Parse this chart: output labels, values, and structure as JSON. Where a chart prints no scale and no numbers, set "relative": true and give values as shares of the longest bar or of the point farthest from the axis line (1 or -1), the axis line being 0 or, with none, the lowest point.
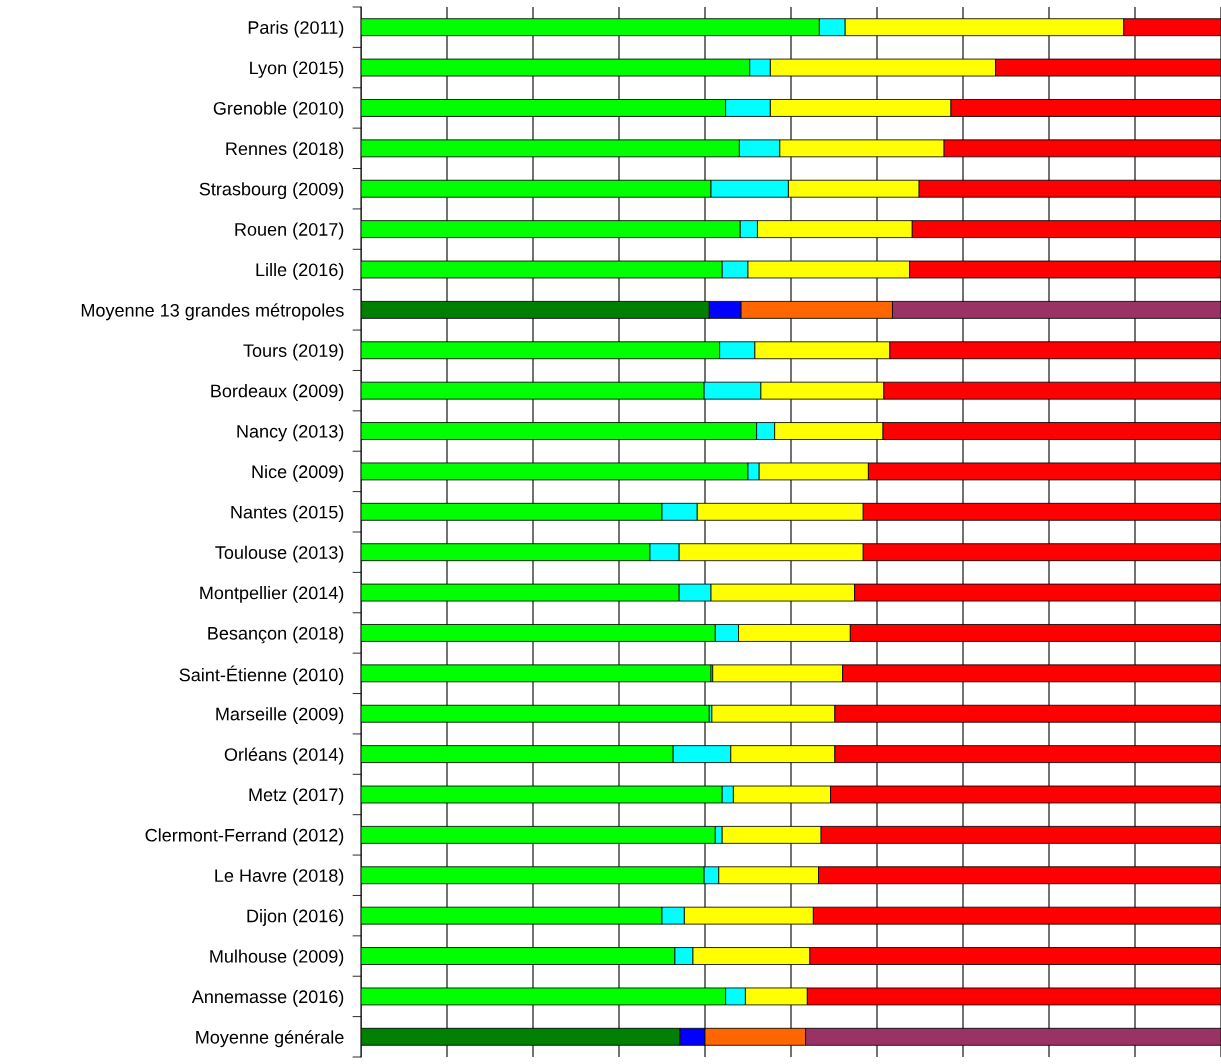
{
  "chart_data": {
    "type": "bar",
    "orientation": "horizontal",
    "stacked": true,
    "relative": true,
    "grid": "x",
    "legend": false,
    "categories": [
      "Paris (2011)",
      "Lyon (2015)",
      "Grenoble (2010)",
      "Rennes (2018)",
      "Strasbourg (2009)",
      "Rouen (2017)",
      "Lille (2016)",
      "Moyenne 13 grandes métropoles",
      "Tours (2019)",
      "Bordeaux (2009)",
      "Nancy (2013)",
      "Nice (2009)",
      "Nantes (2015)",
      "Toulouse (2013)",
      "Montpellier (2014)",
      "Besançon (2018)",
      "Saint-Étienne (2010)",
      "Marseille (2009)",
      "Orléans (2014)",
      "Metz (2017)",
      "Clermont-Ferrand (2012)",
      "Le Havre (2018)",
      "Dijon (2016)",
      "Mulhouse (2009)",
      "Annemasse (2016)",
      "Moyenne générale"
    ],
    "series": [
      {
        "colors": [
          "#00ff00",
          "#00ff00",
          "#00ff00",
          "#00ff00",
          "#00ff00",
          "#00ff00",
          "#00ff00",
          "#007f00",
          "#00ff00",
          "#00ff00",
          "#00ff00",
          "#00ff00",
          "#00ff00",
          "#00ff00",
          "#00ff00",
          "#00ff00",
          "#00ff00",
          "#00ff00",
          "#00ff00",
          "#00ff00",
          "#00ff00",
          "#00ff00",
          "#00ff00",
          "#00ff00",
          "#00ff00",
          "#007f00"
        ],
        "values": [
          0.533,
          0.452,
          0.424,
          0.44,
          0.407,
          0.441,
          0.42,
          0.405,
          0.417,
          0.399,
          0.46,
          0.45,
          0.35,
          0.336,
          0.37,
          0.412,
          0.407,
          0.405,
          0.363,
          0.42,
          0.412,
          0.399,
          0.35,
          0.365,
          0.424,
          0.371
        ]
      },
      {
        "colors": [
          "#00ffff",
          "#00ffff",
          "#00ffff",
          "#00ffff",
          "#00ffff",
          "#00ffff",
          "#00ffff",
          "#0000ff",
          "#00ffff",
          "#00ffff",
          "#00ffff",
          "#00ffff",
          "#00ffff",
          "#00ffff",
          "#00ffff",
          "#00ffff",
          "#00ffff",
          "#00ffff",
          "#00ffff",
          "#00ffff",
          "#00ffff",
          "#00ffff",
          "#00ffff",
          "#00ffff",
          "#00ffff",
          "#0000ff"
        ],
        "values": [
          0.03,
          0.024,
          0.052,
          0.047,
          0.09,
          0.02,
          0.03,
          0.037,
          0.041,
          0.066,
          0.021,
          0.013,
          0.041,
          0.034,
          0.037,
          0.027,
          0.002,
          0.003,
          0.067,
          0.013,
          0.008,
          0.017,
          0.026,
          0.021,
          0.023,
          0.029
        ]
      },
      {
        "colors": [
          "#ffff00",
          "#ffff00",
          "#ffff00",
          "#ffff00",
          "#ffff00",
          "#ffff00",
          "#ffff00",
          "#ff6600",
          "#ffff00",
          "#ffff00",
          "#ffff00",
          "#ffff00",
          "#ffff00",
          "#ffff00",
          "#ffff00",
          "#ffff00",
          "#ffff00",
          "#ffff00",
          "#ffff00",
          "#ffff00",
          "#ffff00",
          "#ffff00",
          "#ffff00",
          "#ffff00",
          "#ffff00",
          "#ff6600"
        ],
        "values": [
          0.324,
          0.262,
          0.21,
          0.191,
          0.152,
          0.18,
          0.188,
          0.176,
          0.157,
          0.143,
          0.126,
          0.127,
          0.193,
          0.214,
          0.167,
          0.13,
          0.151,
          0.143,
          0.121,
          0.113,
          0.115,
          0.116,
          0.15,
          0.136,
          0.072,
          0.117
        ]
      },
      {
        "colors": [
          "#ff0000",
          "#ff0000",
          "#ff0000",
          "#ff0000",
          "#ff0000",
          "#ff0000",
          "#ff0000",
          "#993366",
          "#ff0000",
          "#ff0000",
          "#ff0000",
          "#ff0000",
          "#ff0000",
          "#ff0000",
          "#ff0000",
          "#ff0000",
          "#ff0000",
          "#ff0000",
          "#ff0000",
          "#ff0000",
          "#ff0000",
          "#ff0000",
          "#ff0000",
          "#ff0000",
          "#ff0000",
          "#993366"
        ],
        "values": [
          0.113,
          0.262,
          0.314,
          0.322,
          0.351,
          0.359,
          0.362,
          0.382,
          0.385,
          0.392,
          0.393,
          0.41,
          0.416,
          0.416,
          0.426,
          0.431,
          0.44,
          0.449,
          0.449,
          0.454,
          0.465,
          0.468,
          0.474,
          0.478,
          0.481,
          0.483
        ]
      }
    ]
  }
}
